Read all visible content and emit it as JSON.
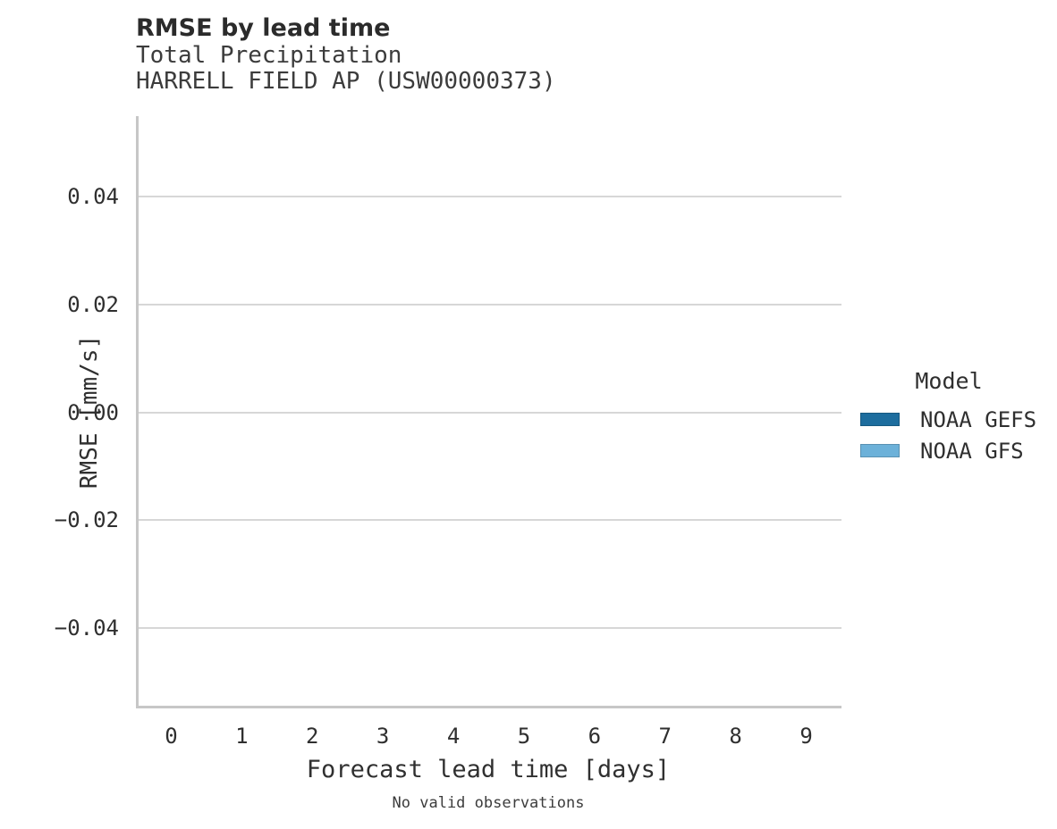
{
  "header": {
    "title": "RMSE by lead time",
    "subtitle1": "Total Precipitation",
    "subtitle2": "HARRELL FIELD AP (USW00000373)"
  },
  "chart_data": {
    "type": "bar",
    "title": "RMSE by lead time",
    "subtitle": [
      "Total Precipitation",
      "HARRELL FIELD AP (USW00000373)"
    ],
    "categories": [
      "0",
      "1",
      "2",
      "3",
      "4",
      "5",
      "6",
      "7",
      "8",
      "9"
    ],
    "series": [
      {
        "name": "NOAA GEFS",
        "color": "#1d6d9e",
        "values": []
      },
      {
        "name": "NOAA GFS",
        "color": "#6cb1d9",
        "values": []
      }
    ],
    "xlabel": "Forecast lead time [days]",
    "ylabel": "RMSE [mm/s]",
    "ylim": [
      -0.055,
      0.055
    ],
    "yticks": [
      0.04,
      0.02,
      0.0,
      -0.02,
      -0.04
    ],
    "ytick_labels": [
      "0.04",
      "0.02",
      "0.00",
      "−0.02",
      "−0.04"
    ],
    "grid": "horizontal-only",
    "legend_position": "right",
    "annotation": "No valid observations"
  },
  "legend": {
    "title": "Model",
    "items": [
      {
        "label": "NOAA GEFS",
        "color": "#1d6d9e"
      },
      {
        "label": "NOAA GFS",
        "color": "#6cb1d9"
      }
    ]
  },
  "caption": "No valid observations",
  "colors": {
    "gridline": "#d7d7d7",
    "spine": "#c7c7c7",
    "gefs_blue": "#1d6d9e",
    "gfs_blue": "#6cb1d9"
  }
}
